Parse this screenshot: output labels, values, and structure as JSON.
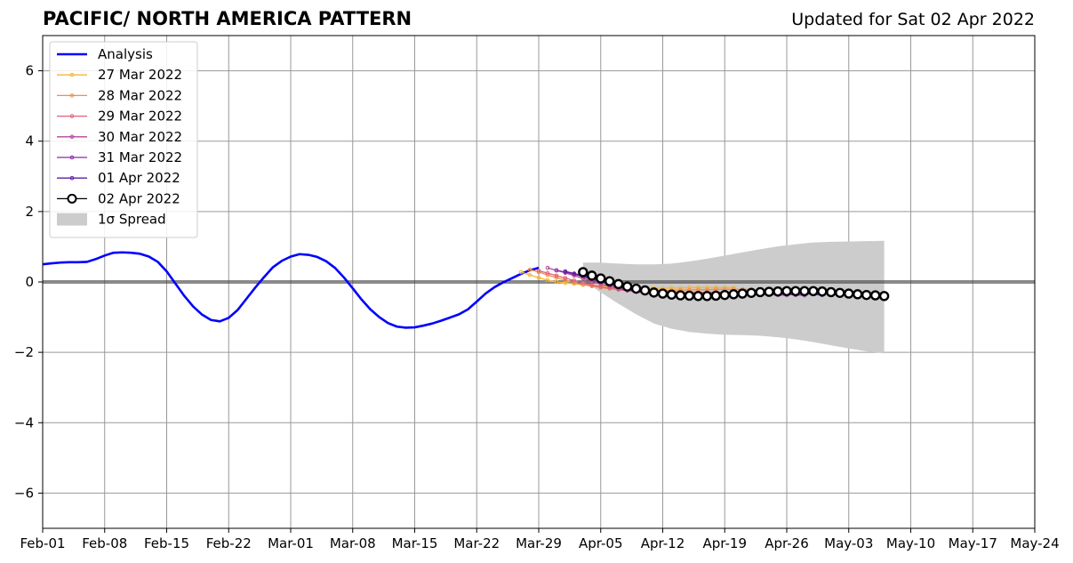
{
  "chart_data": {
    "type": "line",
    "title": "PACIFIC/ NORTH AMERICA PATTERN",
    "subtitle": "Updated for Sat 02 Apr 2022",
    "xlabel": "",
    "ylabel": "",
    "x_tick_labels": [
      "Feb-01",
      "Feb-08",
      "Feb-15",
      "Feb-22",
      "Mar-01",
      "Mar-08",
      "Mar-15",
      "Mar-22",
      "Mar-29",
      "Apr-05",
      "Apr-12",
      "Apr-19",
      "Apr-26",
      "May-03",
      "May-10",
      "May-17",
      "May-24"
    ],
    "y_ticks": [
      -6,
      -4,
      -2,
      0,
      2,
      4,
      6
    ],
    "xlim_days": [
      0,
      112
    ],
    "ylim": [
      -7,
      7
    ],
    "grid": true,
    "legend_position": "top-left",
    "colors": {
      "analysis": "#0000ff",
      "spread": "#cccccc",
      "grid": "#999999",
      "zero_line": "#444444"
    },
    "analysis": {
      "name": "Analysis",
      "x": [
        0,
        1,
        2,
        3,
        4,
        5,
        6,
        7,
        8,
        9,
        10,
        11,
        12,
        13,
        14,
        15,
        16,
        17,
        18,
        19,
        20,
        21,
        22,
        23,
        24,
        25,
        26,
        27,
        28,
        29,
        30,
        31,
        32,
        33,
        34,
        35,
        36,
        37,
        38,
        39,
        40,
        41,
        42,
        43,
        44,
        45,
        46,
        47,
        48,
        49,
        50,
        51,
        52,
        53,
        54,
        55,
        56
      ],
      "y": [
        0.5,
        0.53,
        0.55,
        0.56,
        0.56,
        0.57,
        0.65,
        0.75,
        0.83,
        0.84,
        0.83,
        0.8,
        0.72,
        0.57,
        0.3,
        -0.05,
        -0.4,
        -0.7,
        -0.93,
        -1.08,
        -1.12,
        -1.02,
        -0.8,
        -0.48,
        -0.16,
        0.14,
        0.42,
        0.6,
        0.72,
        0.79,
        0.77,
        0.71,
        0.59,
        0.4,
        0.13,
        -0.18,
        -0.5,
        -0.78,
        -1.0,
        -1.17,
        -1.27,
        -1.3,
        -1.29,
        -1.24,
        -1.18,
        -1.1,
        -1.01,
        -0.92,
        -0.78,
        -0.56,
        -0.33,
        -0.15,
        -0.01,
        0.11,
        0.23,
        0.33,
        0.4
      ]
    },
    "forecasts": [
      {
        "name": "27 Mar 2022",
        "color": "#f7b536",
        "y": [
          0.28,
          0.2,
          0.12,
          0.05,
          0.0,
          -0.03,
          -0.05,
          -0.08,
          -0.1,
          -0.12,
          -0.14,
          -0.15,
          -0.16,
          -0.17,
          -0.18,
          -0.18,
          -0.18,
          -0.17,
          -0.17,
          -0.16,
          -0.16,
          -0.16,
          -0.16,
          -0.16,
          -0.16
        ]
      },
      {
        "name": "28 Mar 2022",
        "color": "#f28e44",
        "y": [
          0.35,
          0.28,
          0.2,
          0.12,
          0.05,
          -0.02,
          -0.08,
          -0.12,
          -0.16,
          -0.19,
          -0.21,
          -0.22,
          -0.23,
          -0.24,
          -0.24,
          -0.24,
          -0.24,
          -0.23,
          -0.23,
          -0.22,
          -0.22,
          -0.21,
          -0.21,
          -0.21,
          -0.21,
          -0.21
        ]
      },
      {
        "name": "29 Mar 2022",
        "color": "#e06278",
        "y": [
          0.32,
          0.25,
          0.18,
          0.11,
          0.04,
          -0.03,
          -0.09,
          -0.14,
          -0.18,
          -0.22,
          -0.25,
          -0.27,
          -0.28,
          -0.29,
          -0.3,
          -0.3,
          -0.3,
          -0.3,
          -0.3,
          -0.29,
          -0.29,
          -0.29,
          -0.29,
          -0.29,
          -0.29,
          -0.29,
          -0.29
        ]
      },
      {
        "name": "30 Mar 2022",
        "color": "#b44697",
        "y": [
          0.4,
          0.33,
          0.26,
          0.18,
          0.1,
          0.02,
          -0.06,
          -0.13,
          -0.19,
          -0.24,
          -0.28,
          -0.31,
          -0.33,
          -0.34,
          -0.35,
          -0.36,
          -0.36,
          -0.35,
          -0.35,
          -0.34,
          -0.33,
          -0.33,
          -0.33,
          -0.34,
          -0.35,
          -0.36,
          -0.37,
          -0.38
        ]
      },
      {
        "name": "31 Mar 2022",
        "color": "#8b2aa6",
        "y": [
          0.33,
          0.28,
          0.22,
          0.15,
          0.08,
          0.0,
          -0.08,
          -0.15,
          -0.21,
          -0.26,
          -0.3,
          -0.33,
          -0.35,
          -0.36,
          -0.37,
          -0.37,
          -0.37,
          -0.36,
          -0.35,
          -0.34,
          -0.33,
          -0.32,
          -0.32,
          -0.32,
          -0.33,
          -0.34,
          -0.35,
          -0.37,
          -0.38
        ]
      },
      {
        "name": "01 Apr 2022",
        "color": "#5b1fa0",
        "y": [
          0.3,
          0.24,
          0.18,
          0.11,
          0.04,
          -0.04,
          -0.11,
          -0.18,
          -0.24,
          -0.29,
          -0.33,
          -0.36,
          -0.38,
          -0.39,
          -0.39,
          -0.38,
          -0.37,
          -0.35,
          -0.33,
          -0.31,
          -0.29,
          -0.28,
          -0.27,
          -0.27,
          -0.28,
          -0.29,
          -0.31,
          -0.33,
          -0.35,
          -0.37
        ]
      },
      {
        "name": "02 Apr 2022",
        "color": "#000000",
        "y": [
          0.28,
          0.18,
          0.1,
          0.02,
          -0.06,
          -0.13,
          -0.19,
          -0.24,
          -0.3,
          -0.33,
          -0.36,
          -0.38,
          -0.39,
          -0.4,
          -0.4,
          -0.39,
          -0.37,
          -0.35,
          -0.33,
          -0.31,
          -0.29,
          -0.28,
          -0.27,
          -0.26,
          -0.26,
          -0.26,
          -0.26,
          -0.27,
          -0.29,
          -0.31,
          -0.33,
          -0.35,
          -0.37,
          -0.38,
          -0.4
        ]
      }
    ],
    "forecast_start_days": [
      54,
      55,
      56,
      57,
      58,
      59,
      61
    ],
    "spread": {
      "name": "1σ Spread",
      "x": [
        61,
        63,
        65,
        67,
        69,
        71,
        73,
        75,
        77,
        79,
        81,
        83,
        85,
        87,
        89,
        91,
        93,
        95
      ],
      "upper": [
        0.55,
        0.55,
        0.52,
        0.5,
        0.5,
        0.52,
        0.58,
        0.66,
        0.75,
        0.84,
        0.93,
        1.01,
        1.07,
        1.12,
        1.14,
        1.15,
        1.16,
        1.17
      ],
      "lower": [
        0.05,
        -0.3,
        -0.62,
        -0.92,
        -1.18,
        -1.33,
        -1.42,
        -1.47,
        -1.5,
        -1.51,
        -1.53,
        -1.57,
        -1.63,
        -1.71,
        -1.8,
        -1.89,
        -1.97,
        -2.03
      ]
    }
  }
}
